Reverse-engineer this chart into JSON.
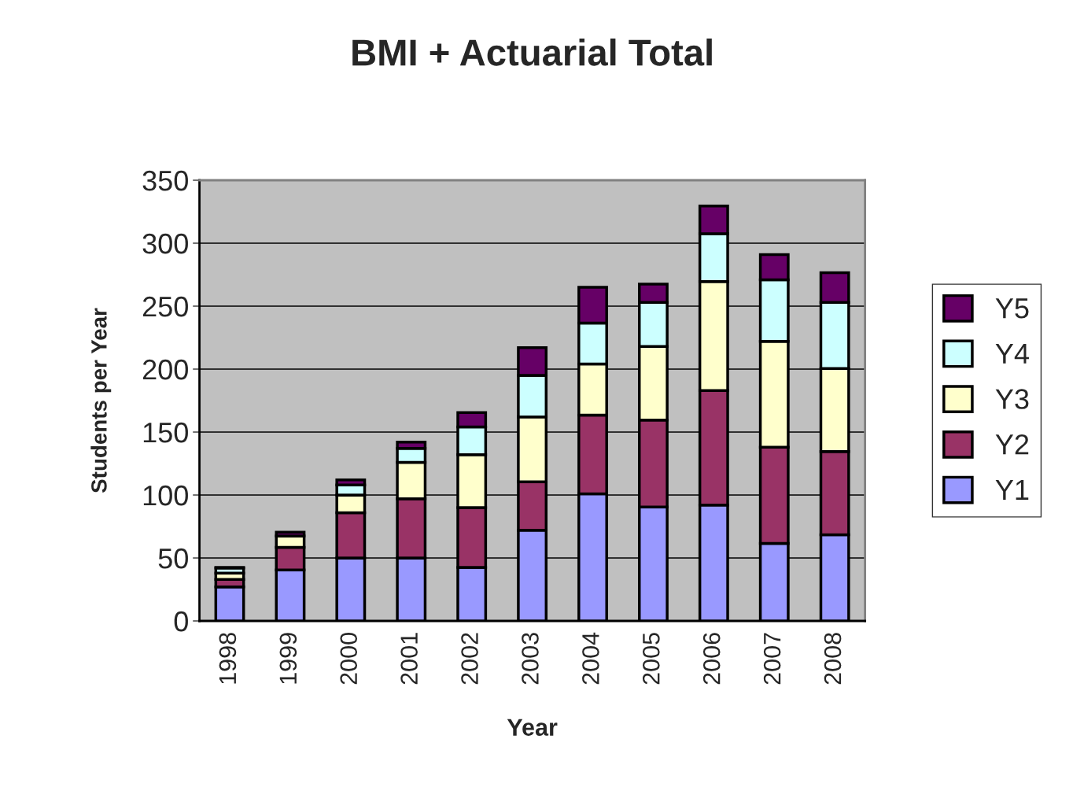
{
  "chart_data": {
    "type": "bar",
    "title": "BMI + Actuarial Total",
    "xlabel": "Year",
    "ylabel": "Students per Year",
    "categories": [
      "1998",
      "1999",
      "2000",
      "2001",
      "2002",
      "2003",
      "2004",
      "2005",
      "2006",
      "2007",
      "2008"
    ],
    "stacked": true,
    "ylim": [
      0,
      350
    ],
    "yticks": [
      0,
      50,
      100,
      150,
      200,
      250,
      300,
      350
    ],
    "grid": "y",
    "legend": "right",
    "series": [
      {
        "name": "Y1",
        "color": "#9999ff",
        "values": [
          27,
          40.5,
          50,
          50,
          42.5,
          72,
          101,
          90.5,
          92,
          61.5,
          68.5
        ]
      },
      {
        "name": "Y2",
        "color": "#993366",
        "values": [
          6,
          18,
          36,
          47,
          47.5,
          38.5,
          62.5,
          69,
          91,
          76.5,
          66
        ]
      },
      {
        "name": "Y3",
        "color": "#ffffcc",
        "values": [
          5,
          9,
          14,
          29,
          42,
          51.5,
          40.5,
          58.5,
          86.5,
          84,
          66
        ]
      },
      {
        "name": "Y4",
        "color": "#ccffff",
        "values": [
          4,
          null,
          8,
          11,
          22,
          33,
          32.5,
          35,
          38,
          49,
          52.5
        ]
      },
      {
        "name": "Y5",
        "color": "#660066",
        "values": [
          0.5,
          3,
          4,
          5,
          11.5,
          22,
          28.5,
          14.5,
          22,
          20,
          23.5
        ]
      }
    ]
  }
}
